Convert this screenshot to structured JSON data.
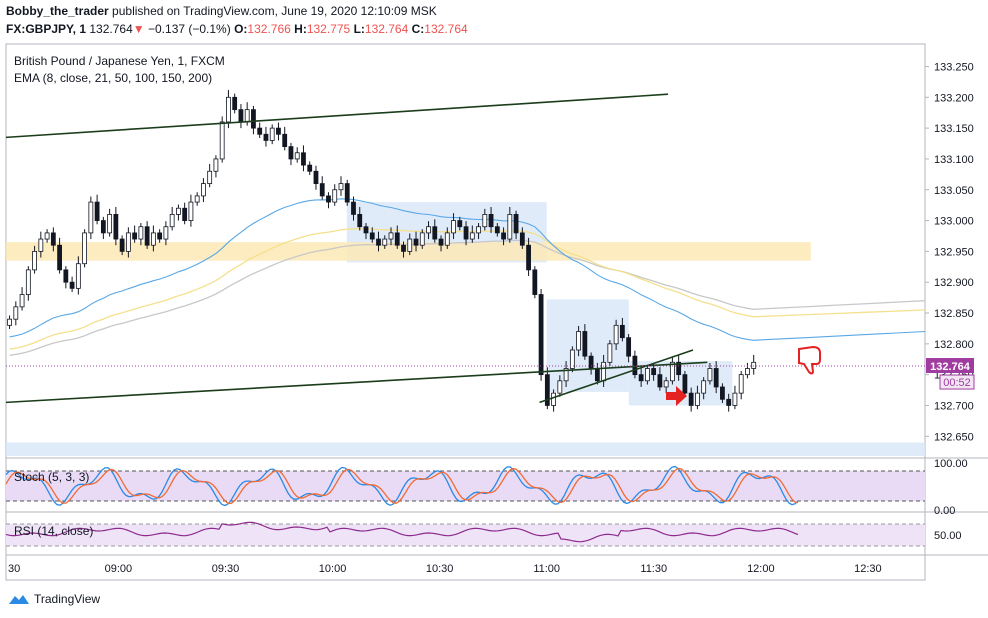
{
  "header": {
    "author": "Bobby_the_trader",
    "published_text": "published on TradingView.com, June 19, 2020 12:10:09 MSK",
    "symbol": "FX:GBPJPY, 1",
    "last": "132.764",
    "change": "−0.137 (−0.1%)",
    "o_label": "O:",
    "o": "132.766",
    "h_label": "H:",
    "h": "132.775",
    "l_label": "L:",
    "l": "132.764",
    "c_label": "C:",
    "c": "132.764"
  },
  "footer": {
    "brand": "TradingView"
  },
  "colors": {
    "up": "#ffffff",
    "down": "#131722",
    "trend": "#1b3d1b",
    "ema_fast": "#5aa8e6",
    "ema_mid": "#f5e08c",
    "ema_slow": "#c8c8c8",
    "zone_blue": "#dbe7f9",
    "zone_yellow": "#fbe9b5",
    "stoch_k": "#2a8ae6",
    "stoch_d": "#f06b35",
    "rsi": "#8e2a8e",
    "price_tag": "#a03ca0",
    "arrow": "#e52222"
  },
  "chart_data": {
    "type": "candlestick",
    "title": "British Pound / Japanese Yen, 1, FXCM",
    "indicator_label": "EMA (8, close, 21, 50, 100, 150, 200)",
    "y_ticks": [
      "133.250",
      "133.200",
      "133.150",
      "133.100",
      "133.050",
      "133.000",
      "132.950",
      "132.900",
      "132.850",
      "132.800",
      "132.750",
      "132.700",
      "132.650"
    ],
    "ylim": [
      132.618,
      133.28
    ],
    "x_ticks": [
      "30",
      "09:00",
      "09:30",
      "10:00",
      "10:30",
      "11:00",
      "11:30",
      "12:00",
      "12:30"
    ],
    "x_tick_minutes": [
      510,
      540,
      570,
      600,
      630,
      660,
      690,
      720,
      750
    ],
    "xlim_minutes": [
      508.5,
      766
    ],
    "current_price": "132.764",
    "countdown": "00:52",
    "candles_close": [
      132.84,
      132.86,
      132.88,
      132.92,
      132.95,
      132.97,
      132.98,
      132.96,
      132.92,
      132.9,
      132.89,
      132.93,
      132.98,
      133.03,
      133.0,
      132.98,
      133.01,
      132.97,
      132.95,
      132.98,
      132.97,
      132.99,
      132.96,
      132.98,
      132.97,
      132.99,
      133.01,
      133.02,
      133.0,
      133.03,
      133.04,
      133.06,
      133.08,
      133.1,
      133.16,
      133.2,
      133.18,
      133.16,
      133.18,
      133.15,
      133.14,
      133.13,
      133.15,
      133.14,
      133.12,
      133.1,
      133.11,
      133.09,
      133.08,
      133.06,
      133.04,
      133.03,
      133.05,
      133.06,
      133.03,
      133.01,
      132.99,
      132.98,
      132.97,
      132.96,
      132.97,
      132.98,
      132.96,
      132.95,
      132.97,
      132.96,
      132.98,
      132.99,
      132.97,
      132.96,
      132.98,
      133.0,
      132.99,
      132.97,
      132.98,
      132.99,
      133.01,
      132.99,
      132.98,
      132.97,
      133.01,
      132.98,
      132.96,
      132.92,
      132.88,
      132.75,
      132.7,
      132.72,
      132.74,
      132.76,
      132.79,
      132.82,
      132.78,
      132.76,
      132.74,
      132.77,
      132.8,
      132.83,
      132.81,
      132.78,
      132.75,
      132.74,
      132.76,
      132.75,
      132.73,
      132.74,
      132.77,
      132.75,
      132.72,
      132.7,
      132.72,
      132.74,
      132.76,
      132.73,
      132.71,
      132.7,
      132.72,
      132.75,
      132.76,
      132.77
    ],
    "ema_fast_end": 132.82,
    "ema_mid_end": 132.855,
    "ema_slow_end": 132.87,
    "trendlines": [
      {
        "from": [
          508.5,
          133.135
        ],
        "to": [
          694,
          133.205
        ]
      },
      {
        "from": [
          508.5,
          132.705
        ],
        "to": [
          705,
          132.77
        ]
      },
      {
        "from": [
          658,
          132.705
        ],
        "to": [
          701,
          132.79
        ]
      }
    ],
    "zones": [
      {
        "kind": "blue",
        "from": [
          604,
          133.03
        ],
        "to": [
          660,
          132.932
        ]
      },
      {
        "kind": "blue",
        "from": [
          660,
          132.872
        ],
        "to": [
          683,
          132.722
        ]
      },
      {
        "kind": "blue",
        "from": [
          683,
          132.772
        ],
        "to": [
          712,
          132.7
        ]
      },
      {
        "kind": "yellow",
        "from": [
          508.5,
          132.965
        ],
        "to": [
          734,
          132.935
        ]
      },
      {
        "kind": "blue",
        "from": [
          508.5,
          132.64
        ],
        "to": [
          766,
          132.618
        ]
      }
    ],
    "stoch": {
      "label": "Stoch (5, 3, 3)",
      "levels": [
        "100.00",
        "0.00"
      ]
    },
    "rsi": {
      "label": "RSI (14, close)",
      "levels": [
        "50.00"
      ]
    }
  }
}
